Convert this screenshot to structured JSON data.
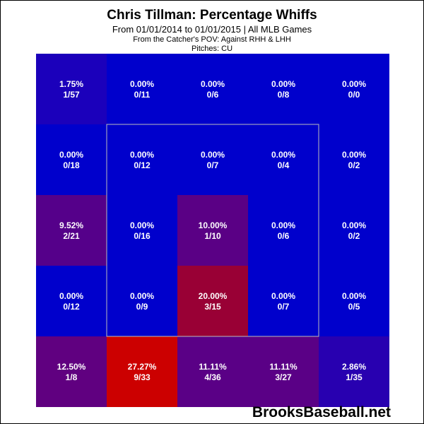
{
  "header": {
    "title": "Chris Tillman: Percentage Whiffs",
    "subtitle": "From 01/01/2014 to 01/01/2015 | All MLB Games",
    "pov": "From the Catcher's POV:  Against RHH & LHH",
    "pitches": "Pitches:  CU"
  },
  "watermark": "BrooksBaseball.net",
  "colors": {
    "low": "#0000cc",
    "high": "#cc0000",
    "strike_zone": "#bbbbbb",
    "text": "#ffffff"
  },
  "chart_data": {
    "type": "heatmap",
    "title": "Chris Tillman: Percentage Whiffs",
    "rows": 5,
    "cols": 5,
    "cells": [
      [
        {
          "pct": "1.75%",
          "frac": "1/57",
          "value": 1.75,
          "color": "#1b00bb"
        },
        {
          "pct": "0.00%",
          "frac": "0/11",
          "value": 0.0,
          "color": "#0000cc"
        },
        {
          "pct": "0.00%",
          "frac": "0/6",
          "value": 0.0,
          "color": "#0000cc"
        },
        {
          "pct": "0.00%",
          "frac": "0/8",
          "value": 0.0,
          "color": "#0000cc"
        },
        {
          "pct": "0.00%",
          "frac": "0/0",
          "value": 0.0,
          "color": "#0000cc"
        }
      ],
      [
        {
          "pct": "0.00%",
          "frac": "0/18",
          "value": 0.0,
          "color": "#0000cc"
        },
        {
          "pct": "0.00%",
          "frac": "0/12",
          "value": 0.0,
          "color": "#0000cc"
        },
        {
          "pct": "0.00%",
          "frac": "0/7",
          "value": 0.0,
          "color": "#0000cc"
        },
        {
          "pct": "0.00%",
          "frac": "0/4",
          "value": 0.0,
          "color": "#0000cc"
        },
        {
          "pct": "0.00%",
          "frac": "0/2",
          "value": 0.0,
          "color": "#0000cc"
        }
      ],
      [
        {
          "pct": "9.52%",
          "frac": "2/21",
          "value": 9.52,
          "color": "#55008a"
        },
        {
          "pct": "0.00%",
          "frac": "0/16",
          "value": 0.0,
          "color": "#0000cc"
        },
        {
          "pct": "10.00%",
          "frac": "1/10",
          "value": 10.0,
          "color": "#5a0085"
        },
        {
          "pct": "0.00%",
          "frac": "0/6",
          "value": 0.0,
          "color": "#0000cc"
        },
        {
          "pct": "0.00%",
          "frac": "0/2",
          "value": 0.0,
          "color": "#0000cc"
        }
      ],
      [
        {
          "pct": "0.00%",
          "frac": "0/12",
          "value": 0.0,
          "color": "#0000cc"
        },
        {
          "pct": "0.00%",
          "frac": "0/9",
          "value": 0.0,
          "color": "#0000cc"
        },
        {
          "pct": "20.00%",
          "frac": "3/15",
          "value": 20.0,
          "color": "#990035"
        },
        {
          "pct": "0.00%",
          "frac": "0/7",
          "value": 0.0,
          "color": "#0000cc"
        },
        {
          "pct": "0.00%",
          "frac": "0/5",
          "value": 0.0,
          "color": "#0000cc"
        }
      ],
      [
        {
          "pct": "12.50%",
          "frac": "1/8",
          "value": 12.5,
          "color": "#600080"
        },
        {
          "pct": "27.27%",
          "frac": "9/33",
          "value": 27.27,
          "color": "#cc0000"
        },
        {
          "pct": "11.11%",
          "frac": "4/36",
          "value": 11.11,
          "color": "#5a0086"
        },
        {
          "pct": "11.11%",
          "frac": "3/27",
          "value": 11.11,
          "color": "#5a0086"
        },
        {
          "pct": "2.86%",
          "frac": "1/35",
          "value": 2.86,
          "color": "#2800b0"
        }
      ]
    ]
  }
}
